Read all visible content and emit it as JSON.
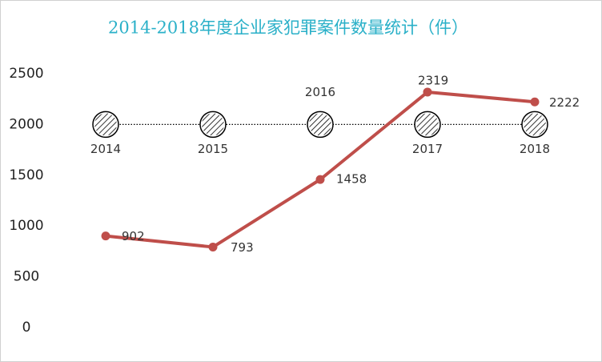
{
  "chart_data": {
    "type": "line",
    "title": "2014-2018年度企业家犯罪案件数量统计（件）",
    "categories": [
      "2014",
      "2015",
      "2016",
      "2017",
      "2018"
    ],
    "series": [
      {
        "color": "#bf4e4a",
        "values": [
          902,
          793,
          1458,
          2319,
          2222
        ]
      },
      {
        "color": "#000000",
        "values": [
          2000,
          2000,
          2000,
          2000,
          2000
        ],
        "line_style": "dotted",
        "marker": "hatched-circle"
      }
    ],
    "ylim": [
      0,
      2500
    ],
    "yticks": [
      0,
      500,
      1000,
      1500,
      2000,
      2500
    ],
    "grid": false
  }
}
